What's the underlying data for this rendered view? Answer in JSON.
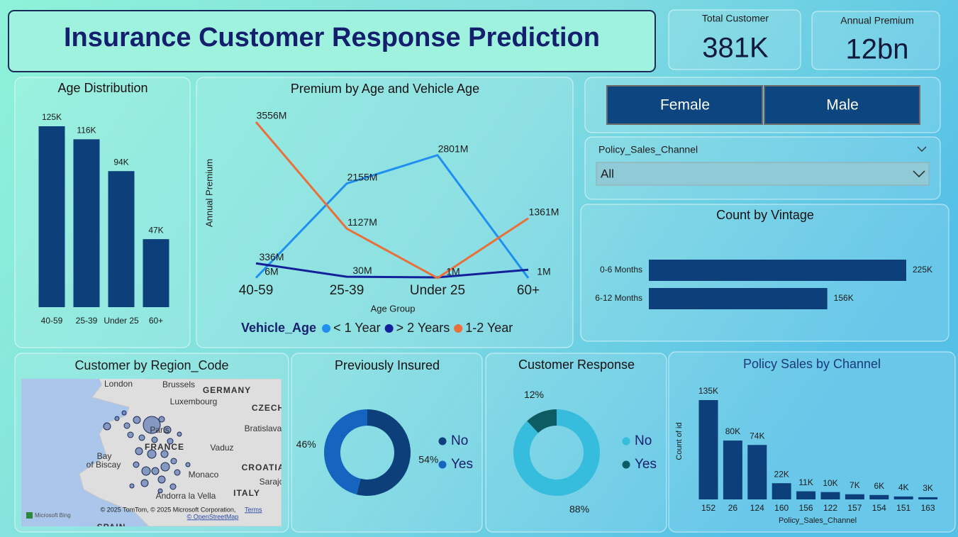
{
  "header": {
    "title": "Insurance Customer Response Prediction"
  },
  "kpis": [
    {
      "label": "Total Customer",
      "value": "381K"
    },
    {
      "label": "Annual Premium",
      "value": "12bn"
    }
  ],
  "gender_slicer": {
    "options": [
      "Female",
      "Male"
    ]
  },
  "channel_slicer": {
    "label": "Policy_Sales_Channel",
    "selected": "All"
  },
  "map": {
    "title": "Customer by Region_Code",
    "labels": [
      "London",
      "Brussels",
      "GERMANY",
      "Luxembourg",
      "CZECH",
      "Bratislava",
      "Paris",
      "FRANCE",
      "Vaduz",
      "Bay",
      "of Biscay",
      "CROATIA",
      "Monaco",
      "Sarajo",
      "Andorra la Vella",
      "ITALY",
      "SPAIN"
    ],
    "credits": [
      "Microsoft Bing",
      "© 2025 TomTom, © 2025 Microsoft Corporation,",
      "Terms",
      "© OpenStreetMap"
    ]
  },
  "chart_data": [
    {
      "type": "bar",
      "title": "Age Distribution",
      "categories": [
        "40-59",
        "25-39",
        "Under 25",
        "60+"
      ],
      "values": [
        125000,
        116000,
        94000,
        47000
      ],
      "value_labels": [
        "125K",
        "116K",
        "94K",
        "47K"
      ],
      "color": "#0d3f7a"
    },
    {
      "type": "line",
      "title": "Premium by Age and Vehicle Age",
      "xlabel": "Age Group",
      "ylabel": "Annual Premium",
      "legend_title": "Vehicle_Age",
      "categories": [
        "40-59",
        "25-39",
        "Under 25",
        "60+"
      ],
      "series": [
        {
          "name": "< 1 Year",
          "color": "#1f8ff0",
          "values": [
            6,
            2155,
            2801,
            1
          ],
          "value_labels": [
            "6M",
            "2155M",
            "2801M",
            "1M"
          ]
        },
        {
          "name": "> 2 Years",
          "color": "#14209a",
          "values": [
            336,
            30,
            16,
            190
          ],
          "value_labels": [
            "336M",
            "30M",
            null,
            null
          ]
        },
        {
          "name": "1-2 Year",
          "color": "#e8703a",
          "values": [
            3556,
            1127,
            1,
            1361
          ],
          "value_labels": [
            "3556M",
            "1127M",
            "1M",
            "1361M"
          ]
        }
      ]
    },
    {
      "type": "hbar",
      "title": "Count by Vintage",
      "categories": [
        "0-6 Months",
        "6-12 Months"
      ],
      "values": [
        225000,
        156000
      ],
      "value_labels": [
        "225K",
        "156K"
      ],
      "color": "#0d3f7a"
    },
    {
      "type": "donut",
      "title": "Previously Insured",
      "categories": [
        "No",
        "Yes"
      ],
      "values": [
        54,
        46
      ],
      "value_labels": [
        "54%",
        "46%"
      ],
      "colors": [
        "#0d3f7a",
        "#1565c0"
      ]
    },
    {
      "type": "donut",
      "title": "Customer Response",
      "categories": [
        "No",
        "Yes"
      ],
      "values": [
        88,
        12
      ],
      "value_labels": [
        "88%",
        "12%"
      ],
      "colors": [
        "#36bcdc",
        "#0e5c63"
      ]
    },
    {
      "type": "bar",
      "title": "Policy Sales by Channel",
      "xlabel": "Policy_Sales_Channel",
      "ylabel": "Count of id",
      "categories": [
        "152",
        "26",
        "124",
        "160",
        "156",
        "122",
        "157",
        "154",
        "151",
        "163"
      ],
      "values": [
        135000,
        80000,
        74000,
        22000,
        11000,
        10000,
        7000,
        6000,
        4000,
        3000
      ],
      "value_labels": [
        "135K",
        "80K",
        "74K",
        "22K",
        "11K",
        "10K",
        "7K",
        "6K",
        "4K",
        "3K"
      ],
      "color": "#0d3f7a"
    }
  ]
}
